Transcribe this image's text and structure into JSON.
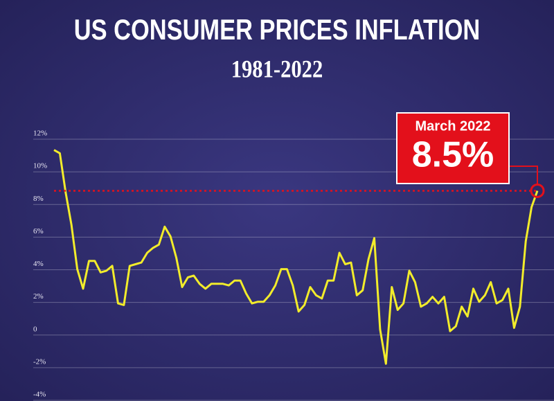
{
  "chart_data": {
    "type": "line",
    "title": "US CONSUMER PRICES INFLATION",
    "subtitle": "1981-2022",
    "color": "#f2ec2b",
    "values": [
      11.0,
      10.8,
      8.4,
      6.4,
      3.7,
      2.5,
      4.2,
      4.2,
      3.5,
      3.6,
      3.9,
      1.6,
      1.5,
      3.9,
      4.0,
      4.1,
      4.7,
      5.0,
      5.2,
      6.3,
      5.7,
      4.4,
      2.6,
      3.2,
      3.3,
      2.8,
      2.5,
      2.8,
      2.8,
      2.8,
      2.7,
      3.0,
      3.0,
      2.2,
      1.6,
      1.7,
      1.7,
      2.1,
      2.7,
      3.7,
      3.7,
      2.7,
      1.1,
      1.5,
      2.6,
      2.1,
      1.9,
      3.0,
      3.0,
      4.7,
      4.0,
      4.1,
      2.1,
      2.4,
      4.3,
      5.6,
      0.0,
      -2.1,
      2.6,
      1.2,
      1.6,
      3.6,
      2.9,
      1.4,
      1.6,
      2.0,
      1.6,
      2.0,
      -0.1,
      0.2,
      1.4,
      0.8,
      2.5,
      1.7,
      2.1,
      2.9,
      1.6,
      1.8,
      2.5,
      0.1,
      1.4,
      5.4,
      7.5,
      8.5
    ],
    "ylim": [
      -4,
      12
    ],
    "yticks": [
      {
        "value": -4,
        "label": "-4%"
      },
      {
        "value": -2,
        "label": "-2%"
      },
      {
        "value": 0,
        "label": "0"
      },
      {
        "value": 2,
        "label": "2%"
      },
      {
        "value": 4,
        "label": "4%"
      },
      {
        "value": 6,
        "label": "6%"
      },
      {
        "value": 8,
        "label": "8%"
      },
      {
        "value": 10,
        "label": "10%"
      },
      {
        "value": 12,
        "label": "12%"
      }
    ],
    "grid": true,
    "annotation": {
      "label": "March 2022",
      "value": 8.5,
      "value_label": "8.5%",
      "color": "#e3101b"
    }
  }
}
